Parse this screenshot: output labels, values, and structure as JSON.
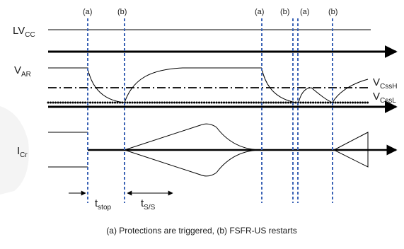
{
  "event_markers": [
    "(a)",
    "(b)",
    "(a)",
    "(b)",
    "(a)",
    "(b)"
  ],
  "signals": {
    "lvcc": {
      "main": "LV",
      "sub": "CC"
    },
    "var": {
      "main": "V",
      "sub": "AR"
    },
    "icr": {
      "main": "I",
      "sub": "Cr"
    }
  },
  "thresholds": {
    "vcssh": {
      "main": "V",
      "sub": "CssH"
    },
    "vcssl": {
      "main": "V",
      "sub": "CssL"
    }
  },
  "timing": {
    "tstop": {
      "main": "t",
      "sub": "stop"
    },
    "tss": {
      "main": "t",
      "sub": "S/S"
    }
  },
  "caption": "(a) Protections are triggered, (b) FSFR-US restarts",
  "colors": {
    "event_line": "#3b63b5",
    "trace": "#000000",
    "background": "#ffffff"
  }
}
